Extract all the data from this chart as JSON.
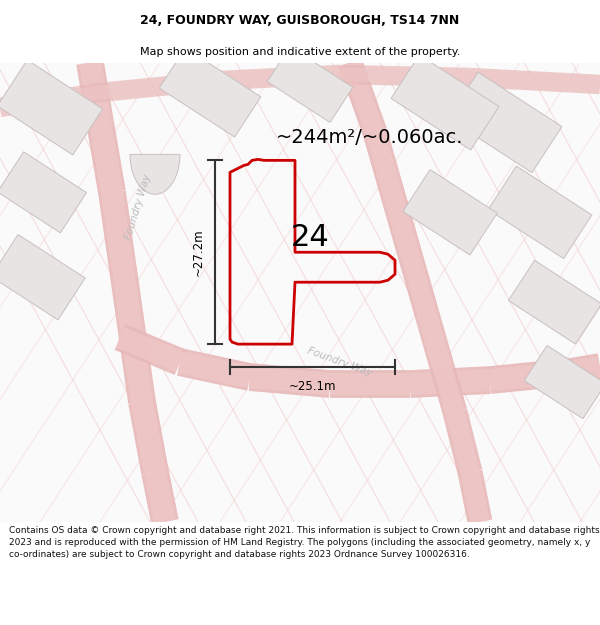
{
  "title": "24, FOUNDRY WAY, GUISBOROUGH, TS14 7NN",
  "subtitle": "Map shows position and indicative extent of the property.",
  "area_label": "~244m²/~0.060ac.",
  "plot_number": "24",
  "dim_height": "~27.2m",
  "dim_width": "~25.1m",
  "footer": "Contains OS data © Crown copyright and database right 2021. This information is subject to Crown copyright and database rights 2023 and is reproduced with the permission of HM Land Registry. The polygons (including the associated geometry, namely x, y co-ordinates) are subject to Crown copyright and database rights 2023 Ordnance Survey 100026316.",
  "bg_color": "#ffffff",
  "map_bg": "#fafafa",
  "road_color": "#f0c8c8",
  "road_edge_color": "#e8b8b8",
  "building_color": "#e8e4e4",
  "building_outline": "#c8c0c0",
  "plot_color": "#cc0000",
  "plot_lw": 2.0,
  "title_fontsize": 9,
  "subtitle_fontsize": 8,
  "area_fontsize": 14,
  "plot_num_fontsize": 22,
  "dim_fontsize": 8.5,
  "footer_fontsize": 6.5,
  "road_label_size": 7.5,
  "road_label_color": "#bbbbbb",
  "dim_color": "#333333"
}
